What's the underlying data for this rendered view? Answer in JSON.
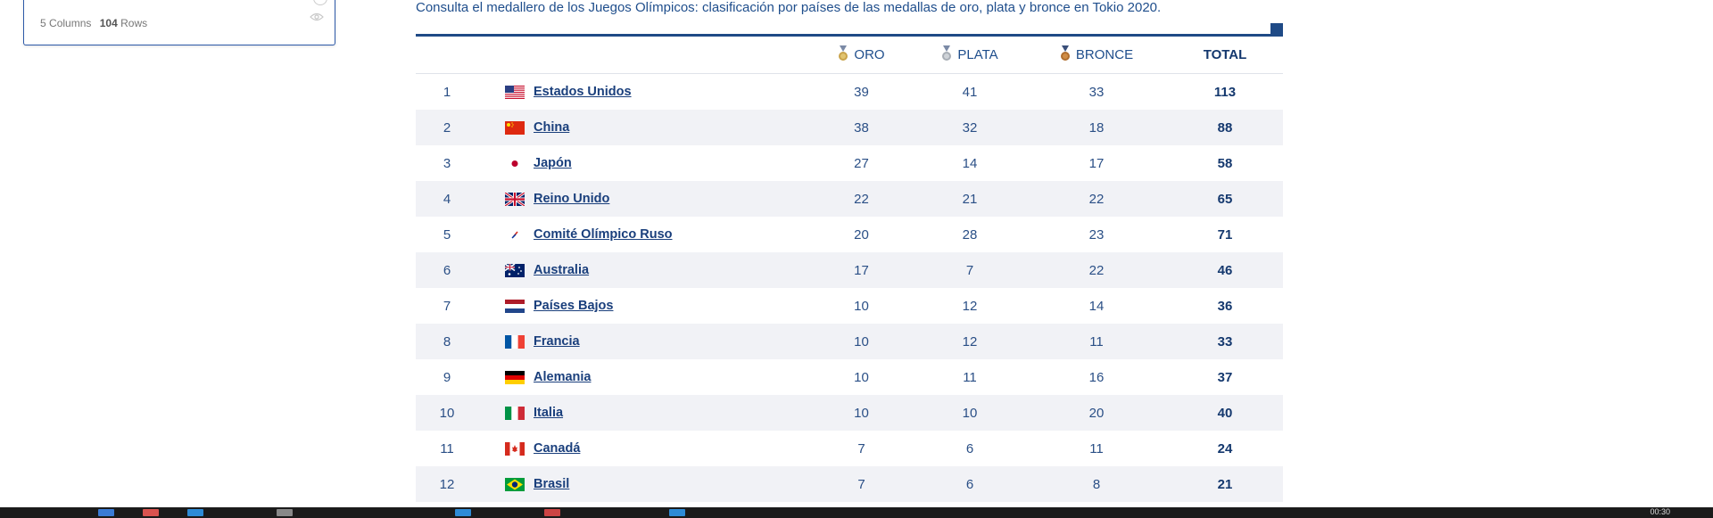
{
  "dataset_card": {
    "columns_count": "5",
    "columns_label": "Columns",
    "rows_count": "104",
    "rows_label": "Rows"
  },
  "intro_text": "Consulta el medallero de los Juegos Olímpicos: clasificación por países de las medallas de oro, plata y bronce en Tokio 2020.",
  "headers": {
    "gold": "ORO",
    "silver": "PLATA",
    "bronze": "BRONCE",
    "total": "TOTAL"
  },
  "colors": {
    "accent": "#1f4a86",
    "gold": "#c9a34a",
    "silver": "#a8aeb6",
    "bronze": "#b06e2e"
  },
  "rows": [
    {
      "rank": "1",
      "country": "Estados Unidos",
      "flag": "us-flag",
      "gold": "39",
      "silver": "41",
      "bronze": "33",
      "total": "113"
    },
    {
      "rank": "2",
      "country": "China",
      "flag": "china-flag",
      "gold": "38",
      "silver": "32",
      "bronze": "18",
      "total": "88"
    },
    {
      "rank": "3",
      "country": "Japón",
      "flag": "japan-flag",
      "gold": "27",
      "silver": "14",
      "bronze": "17",
      "total": "58"
    },
    {
      "rank": "4",
      "country": "Reino Unido",
      "flag": "uk-flag",
      "gold": "22",
      "silver": "21",
      "bronze": "22",
      "total": "65"
    },
    {
      "rank": "5",
      "country": "Comité Olímpico Ruso",
      "flag": "roc-flag",
      "gold": "20",
      "silver": "28",
      "bronze": "23",
      "total": "71"
    },
    {
      "rank": "6",
      "country": "Australia",
      "flag": "australia-flag",
      "gold": "17",
      "silver": "7",
      "bronze": "22",
      "total": "46"
    },
    {
      "rank": "7",
      "country": "Países Bajos",
      "flag": "netherlands-flag",
      "gold": "10",
      "silver": "12",
      "bronze": "14",
      "total": "36"
    },
    {
      "rank": "8",
      "country": "Francia",
      "flag": "france-flag",
      "gold": "10",
      "silver": "12",
      "bronze": "11",
      "total": "33"
    },
    {
      "rank": "9",
      "country": "Alemania",
      "flag": "germany-flag",
      "gold": "10",
      "silver": "11",
      "bronze": "16",
      "total": "37"
    },
    {
      "rank": "10",
      "country": "Italia",
      "flag": "italy-flag",
      "gold": "10",
      "silver": "10",
      "bronze": "20",
      "total": "40"
    },
    {
      "rank": "11",
      "country": "Canadá",
      "flag": "canada-flag",
      "gold": "7",
      "silver": "6",
      "bronze": "11",
      "total": "24"
    },
    {
      "rank": "12",
      "country": "Brasil",
      "flag": "brazil-flag",
      "gold": "7",
      "silver": "6",
      "bronze": "8",
      "total": "21"
    }
  ],
  "taskbar": {
    "clock": "00:30"
  }
}
